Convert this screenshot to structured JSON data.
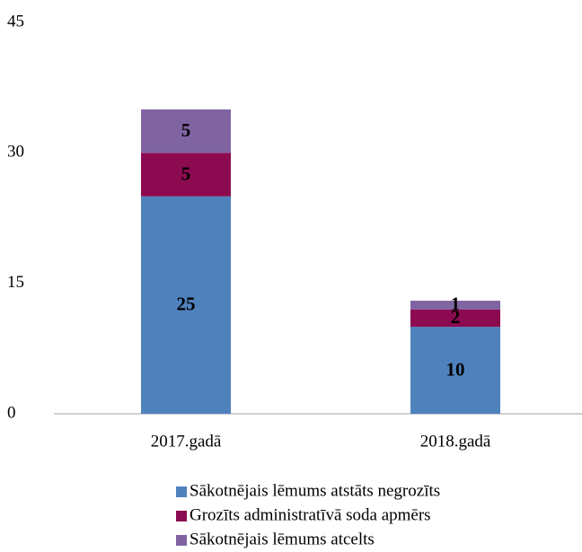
{
  "chart_data": {
    "type": "bar",
    "stacked": true,
    "categories": [
      "2017.gadā",
      "2018.gadā"
    ],
    "series": [
      {
        "name": "Sākotnējais lēmums atstāts negrozīts",
        "color": "#4f81bd",
        "values": [
          25,
          10
        ]
      },
      {
        "name": "Grozīts administratīvā soda apmērs",
        "color": "#8b0a50",
        "values": [
          5,
          2
        ]
      },
      {
        "name": "Sākotnējais lēmums atcelts",
        "color": "#8064a2",
        "values": [
          5,
          1
        ]
      }
    ],
    "ylim": [
      0,
      45
    ],
    "yticks": [
      0,
      15,
      30,
      45
    ],
    "grid": false,
    "legend": "bottom"
  }
}
